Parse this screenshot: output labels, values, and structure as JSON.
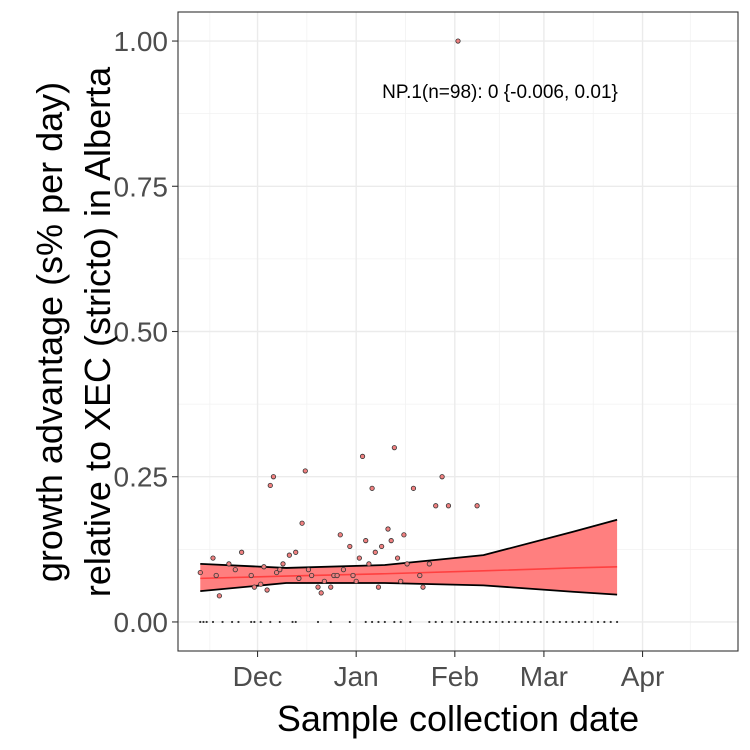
{
  "chart_data": {
    "type": "scatter",
    "xlabel": "Sample collection date",
    "ylabel": [
      "growth advantage (s% per day)",
      "relative to XEC (stricto) in Alberta"
    ],
    "annotation": "NP.1(n=98): 0 {-0.006, 0.01}",
    "xlim": [
      "2024-11-06",
      "2025-05-01"
    ],
    "ylim": [
      -0.05,
      1.05
    ],
    "x_ticks": [
      {
        "date": "2024-12-01",
        "label": "Dec"
      },
      {
        "date": "2025-01-01",
        "label": "Jan"
      },
      {
        "date": "2025-02-01",
        "label": "Feb"
      },
      {
        "date": "2025-03-01",
        "label": "Mar"
      },
      {
        "date": "2025-04-01",
        "label": "Apr"
      }
    ],
    "y_ticks": [
      0.0,
      0.25,
      0.5,
      0.75,
      1.0
    ],
    "y_tick_labels": [
      "0.00",
      "0.25",
      "0.50",
      "0.75",
      "1.00"
    ],
    "grid": true,
    "colors": {
      "ribbon": "#ff7f7f",
      "fit_line": "#ff4040",
      "ribbon_edge": "#000000",
      "point_fill": "#f08080",
      "point_edge": "#333333"
    },
    "fit": {
      "x": [
        "2024-11-13",
        "2024-12-10",
        "2025-01-10",
        "2025-02-10",
        "2025-03-10",
        "2025-03-24"
      ],
      "y": [
        0.075,
        0.079,
        0.083,
        0.088,
        0.093,
        0.095
      ],
      "lower": [
        0.053,
        0.067,
        0.067,
        0.063,
        0.052,
        0.047
      ],
      "upper": [
        0.1,
        0.093,
        0.098,
        0.115,
        0.155,
        0.176
      ]
    },
    "points": {
      "x": [
        "2024-11-13",
        "2024-11-17",
        "2024-11-18",
        "2024-11-19",
        "2024-11-22",
        "2024-11-24",
        "2024-11-26",
        "2024-11-29",
        "2024-11-30",
        "2024-12-02",
        "2024-12-03",
        "2024-12-04",
        "2024-12-05",
        "2024-12-06",
        "2024-12-07",
        "2024-12-08",
        "2024-12-09",
        "2024-12-11",
        "2024-12-13",
        "2024-12-14",
        "2024-12-15",
        "2024-12-16",
        "2024-12-17",
        "2024-12-18",
        "2024-12-20",
        "2024-12-21",
        "2024-12-22",
        "2024-12-24",
        "2024-12-25",
        "2024-12-26",
        "2024-12-27",
        "2024-12-28",
        "2024-12-30",
        "2024-12-31",
        "2025-01-01",
        "2025-01-02",
        "2025-01-03",
        "2025-01-04",
        "2025-01-05",
        "2025-01-06",
        "2025-01-07",
        "2025-01-08",
        "2025-01-09",
        "2025-01-11",
        "2025-01-12",
        "2025-01-13",
        "2025-01-14",
        "2025-01-15",
        "2025-01-16",
        "2025-01-17",
        "2025-01-19",
        "2025-01-21",
        "2025-01-22",
        "2025-01-24",
        "2025-01-26",
        "2025-01-28",
        "2025-01-30",
        "2025-02-02",
        "2025-02-08"
      ],
      "y": [
        0.085,
        0.11,
        0.08,
        0.045,
        0.1,
        0.09,
        0.12,
        0.08,
        0.06,
        0.065,
        0.095,
        0.055,
        0.235,
        0.25,
        0.085,
        0.09,
        0.1,
        0.115,
        0.12,
        0.075,
        0.17,
        0.26,
        0.09,
        0.08,
        0.06,
        0.05,
        0.07,
        0.06,
        0.08,
        0.08,
        0.15,
        0.09,
        0.13,
        0.08,
        0.07,
        0.11,
        0.285,
        0.14,
        0.1,
        0.23,
        0.12,
        0.06,
        0.13,
        0.16,
        0.14,
        0.3,
        0.11,
        0.07,
        0.15,
        0.1,
        0.23,
        0.08,
        0.06,
        0.1,
        0.2,
        0.25,
        0.2,
        1.0,
        0.2
      ],
      "zero_x": [
        "2024-11-13",
        "2024-11-14",
        "2024-11-15",
        "2024-11-17",
        "2024-11-20",
        "2024-11-23",
        "2024-11-25",
        "2024-11-29",
        "2024-11-30",
        "2024-12-02",
        "2024-12-05",
        "2024-12-08",
        "2024-12-12",
        "2024-12-13",
        "2024-12-20",
        "2024-12-24",
        "2024-12-30",
        "2025-01-04",
        "2025-01-06",
        "2025-01-08",
        "2025-01-10",
        "2025-01-13",
        "2025-01-15",
        "2025-01-18",
        "2025-01-24",
        "2025-01-26",
        "2025-01-28",
        "2025-01-31",
        "2025-02-02",
        "2025-02-04",
        "2025-02-06",
        "2025-02-08",
        "2025-02-10",
        "2025-02-12",
        "2025-02-14",
        "2025-02-16",
        "2025-02-18",
        "2025-02-20",
        "2025-02-22",
        "2025-02-24",
        "2025-02-26",
        "2025-02-28",
        "2025-03-02",
        "2025-03-04",
        "2025-03-06",
        "2025-03-08",
        "2025-03-10",
        "2025-03-12",
        "2025-03-14",
        "2025-03-16",
        "2025-03-18",
        "2025-03-20",
        "2025-03-22",
        "2025-03-24"
      ]
    }
  }
}
